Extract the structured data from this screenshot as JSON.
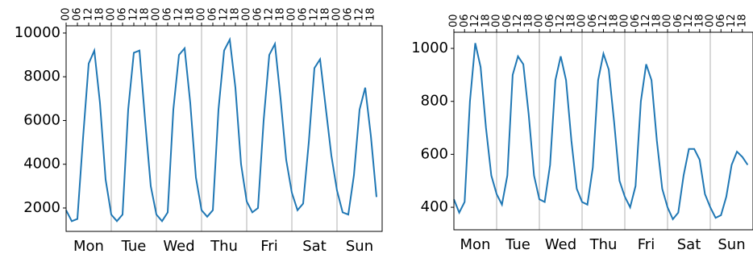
{
  "chart_data": [
    {
      "type": "line",
      "x": [
        0,
        3,
        6,
        9,
        12,
        15,
        18,
        21,
        24,
        27,
        30,
        33,
        36,
        39,
        42,
        45,
        48,
        51,
        54,
        57,
        60,
        63,
        66,
        69,
        72,
        75,
        78,
        81,
        84,
        87,
        90,
        93,
        96,
        99,
        102,
        105,
        108,
        111,
        114,
        117,
        120,
        123,
        126,
        129,
        132,
        135,
        138,
        141,
        144,
        147,
        150,
        153,
        156,
        159,
        162,
        165
      ],
      "series": [
        {
          "color": "#1f77b4",
          "values": [
            1900,
            1400,
            1500,
            5200,
            8600,
            9200,
            6800,
            3300,
            1700,
            1400,
            1700,
            6500,
            9100,
            9200,
            6000,
            3000,
            1700,
            1400,
            1800,
            6500,
            9000,
            9300,
            6800,
            3400,
            1900,
            1600,
            1900,
            6500,
            9200,
            9700,
            7500,
            4000,
            2300,
            1800,
            2000,
            6000,
            9000,
            9500,
            7000,
            4200,
            2700,
            1900,
            2200,
            5000,
            8400,
            8800,
            6600,
            4400,
            2800,
            1800,
            1700,
            3500,
            6500,
            7500,
            5300,
            2500
          ]
        }
      ],
      "xlim": [
        0,
        168
      ],
      "ylim": [
        930,
        10330
      ],
      "yticks": [
        2000,
        4000,
        6000,
        8000,
        10000
      ],
      "xticks": [
        {
          "value": 12,
          "label": "Mon"
        },
        {
          "value": 36,
          "label": "Tue"
        },
        {
          "value": 60,
          "label": "Wed"
        },
        {
          "value": 84,
          "label": "Thu"
        },
        {
          "value": 108,
          "label": "Fri"
        },
        {
          "value": 132,
          "label": "Sat"
        },
        {
          "value": 156,
          "label": "Sun"
        }
      ],
      "x2ticks": [
        {
          "value": 0,
          "label": "00"
        },
        {
          "value": 6,
          "label": "06"
        },
        {
          "value": 12,
          "label": "12"
        },
        {
          "value": 18,
          "label": "18"
        },
        {
          "value": 24,
          "label": "00"
        },
        {
          "value": 30,
          "label": "06"
        },
        {
          "value": 36,
          "label": "12"
        },
        {
          "value": 42,
          "label": "18"
        },
        {
          "value": 48,
          "label": "00"
        },
        {
          "value": 54,
          "label": "06"
        },
        {
          "value": 60,
          "label": "12"
        },
        {
          "value": 66,
          "label": "18"
        },
        {
          "value": 72,
          "label": "00"
        },
        {
          "value": 78,
          "label": "06"
        },
        {
          "value": 84,
          "label": "12"
        },
        {
          "value": 90,
          "label": "18"
        },
        {
          "value": 96,
          "label": "00"
        },
        {
          "value": 102,
          "label": "06"
        },
        {
          "value": 108,
          "label": "12"
        },
        {
          "value": 114,
          "label": "18"
        },
        {
          "value": 120,
          "label": "00"
        },
        {
          "value": 126,
          "label": "06"
        },
        {
          "value": 132,
          "label": "12"
        },
        {
          "value": 138,
          "label": "18"
        },
        {
          "value": 144,
          "label": "00"
        },
        {
          "value": 150,
          "label": "06"
        },
        {
          "value": 156,
          "label": "12"
        },
        {
          "value": 162,
          "label": "18"
        }
      ],
      "grid": true
    },
    {
      "type": "line",
      "x": [
        0,
        3,
        6,
        9,
        12,
        15,
        18,
        21,
        24,
        27,
        30,
        33,
        36,
        39,
        42,
        45,
        48,
        51,
        54,
        57,
        60,
        63,
        66,
        69,
        72,
        75,
        78,
        81,
        84,
        87,
        90,
        93,
        96,
        99,
        102,
        105,
        108,
        111,
        114,
        117,
        120,
        123,
        126,
        129,
        132,
        135,
        138,
        141,
        144,
        147,
        150,
        153,
        156,
        159,
        162,
        165
      ],
      "series": [
        {
          "color": "#1f77b4",
          "values": [
            430,
            380,
            420,
            800,
            1020,
            930,
            700,
            520,
            450,
            410,
            520,
            900,
            970,
            940,
            750,
            520,
            430,
            420,
            560,
            880,
            970,
            880,
            650,
            470,
            420,
            410,
            550,
            880,
            980,
            920,
            720,
            500,
            440,
            400,
            480,
            800,
            940,
            880,
            650,
            470,
            400,
            355,
            380,
            520,
            620,
            620,
            580,
            450,
            400,
            360,
            370,
            440,
            560,
            610,
            590,
            560
          ]
        }
      ],
      "xlim": [
        0,
        168
      ],
      "ylim": [
        315,
        1061
      ],
      "yticks": [
        400,
        600,
        800,
        1000
      ],
      "xticks": [
        {
          "value": 12,
          "label": "Mon"
        },
        {
          "value": 36,
          "label": "Tue"
        },
        {
          "value": 60,
          "label": "Wed"
        },
        {
          "value": 84,
          "label": "Thu"
        },
        {
          "value": 108,
          "label": "Fri"
        },
        {
          "value": 132,
          "label": "Sat"
        },
        {
          "value": 156,
          "label": "Sun"
        }
      ],
      "x2ticks": [
        {
          "value": 0,
          "label": "00"
        },
        {
          "value": 6,
          "label": "06"
        },
        {
          "value": 12,
          "label": "12"
        },
        {
          "value": 18,
          "label": "18"
        },
        {
          "value": 24,
          "label": "00"
        },
        {
          "value": 30,
          "label": "06"
        },
        {
          "value": 36,
          "label": "12"
        },
        {
          "value": 42,
          "label": "18"
        },
        {
          "value": 48,
          "label": "00"
        },
        {
          "value": 54,
          "label": "06"
        },
        {
          "value": 60,
          "label": "12"
        },
        {
          "value": 66,
          "label": "18"
        },
        {
          "value": 72,
          "label": "00"
        },
        {
          "value": 78,
          "label": "06"
        },
        {
          "value": 84,
          "label": "12"
        },
        {
          "value": 90,
          "label": "18"
        },
        {
          "value": 96,
          "label": "00"
        },
        {
          "value": 102,
          "label": "06"
        },
        {
          "value": 108,
          "label": "12"
        },
        {
          "value": 114,
          "label": "18"
        },
        {
          "value": 120,
          "label": "00"
        },
        {
          "value": 126,
          "label": "06"
        },
        {
          "value": 132,
          "label": "12"
        },
        {
          "value": 138,
          "label": "18"
        },
        {
          "value": 144,
          "label": "00"
        },
        {
          "value": 150,
          "label": "06"
        },
        {
          "value": 156,
          "label": "12"
        },
        {
          "value": 162,
          "label": "18"
        }
      ],
      "grid": true
    }
  ]
}
